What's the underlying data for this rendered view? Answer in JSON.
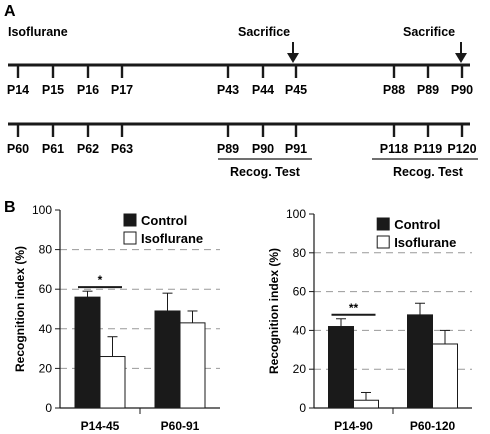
{
  "panels": {
    "a_label": "A",
    "b_label": "B"
  },
  "timeline": {
    "isoflurane_label": "Isoflurane",
    "sacrifice_label_1": "Sacrifice",
    "sacrifice_label_2": "Sacrifice",
    "row1_days": [
      "P14",
      "P15",
      "P16",
      "P17",
      "P43",
      "P44",
      "P45",
      "P88",
      "P89",
      "P90"
    ],
    "row2_days": [
      "P60",
      "P61",
      "P62",
      "P63",
      "P89",
      "P90",
      "P91",
      "P118",
      "P119",
      "P120"
    ],
    "recog_label_1": "Recog. Test",
    "recog_label_2": "Recog. Test"
  },
  "colors": {
    "control": "#1a1a1a",
    "isoflurane": "#ffffff",
    "grid": "#999999"
  },
  "chart_data": [
    {
      "type": "bar",
      "categories": [
        "P14-45",
        "P60-91"
      ],
      "ylabel": "Recognition index (%)",
      "ylim": [
        0,
        100
      ],
      "yticks": [
        "0",
        "20",
        "40",
        "60",
        "80",
        "100"
      ],
      "grid": "dashed horizontal",
      "legend_position": "top-right",
      "series": [
        {
          "name": "Control",
          "values": [
            56,
            49
          ],
          "errors": [
            3,
            9
          ]
        },
        {
          "name": "Isoflurane",
          "values": [
            26,
            43
          ],
          "errors": [
            10,
            6
          ]
        }
      ],
      "significance": [
        {
          "category": "P14-45",
          "label": "*"
        }
      ]
    },
    {
      "type": "bar",
      "categories": [
        "P14-90",
        "P60-120"
      ],
      "ylabel": "Recognition index (%)",
      "ylim": [
        0,
        100
      ],
      "yticks": [
        "0",
        "20",
        "40",
        "60",
        "80",
        "100"
      ],
      "grid": "dashed horizontal",
      "legend_position": "top-right",
      "series": [
        {
          "name": "Control",
          "values": [
            42,
            48
          ],
          "errors": [
            4,
            6
          ]
        },
        {
          "name": "Isoflurane",
          "values": [
            4,
            33
          ],
          "errors": [
            4,
            7
          ]
        }
      ],
      "significance": [
        {
          "category": "P14-90",
          "label": "**"
        }
      ]
    }
  ]
}
